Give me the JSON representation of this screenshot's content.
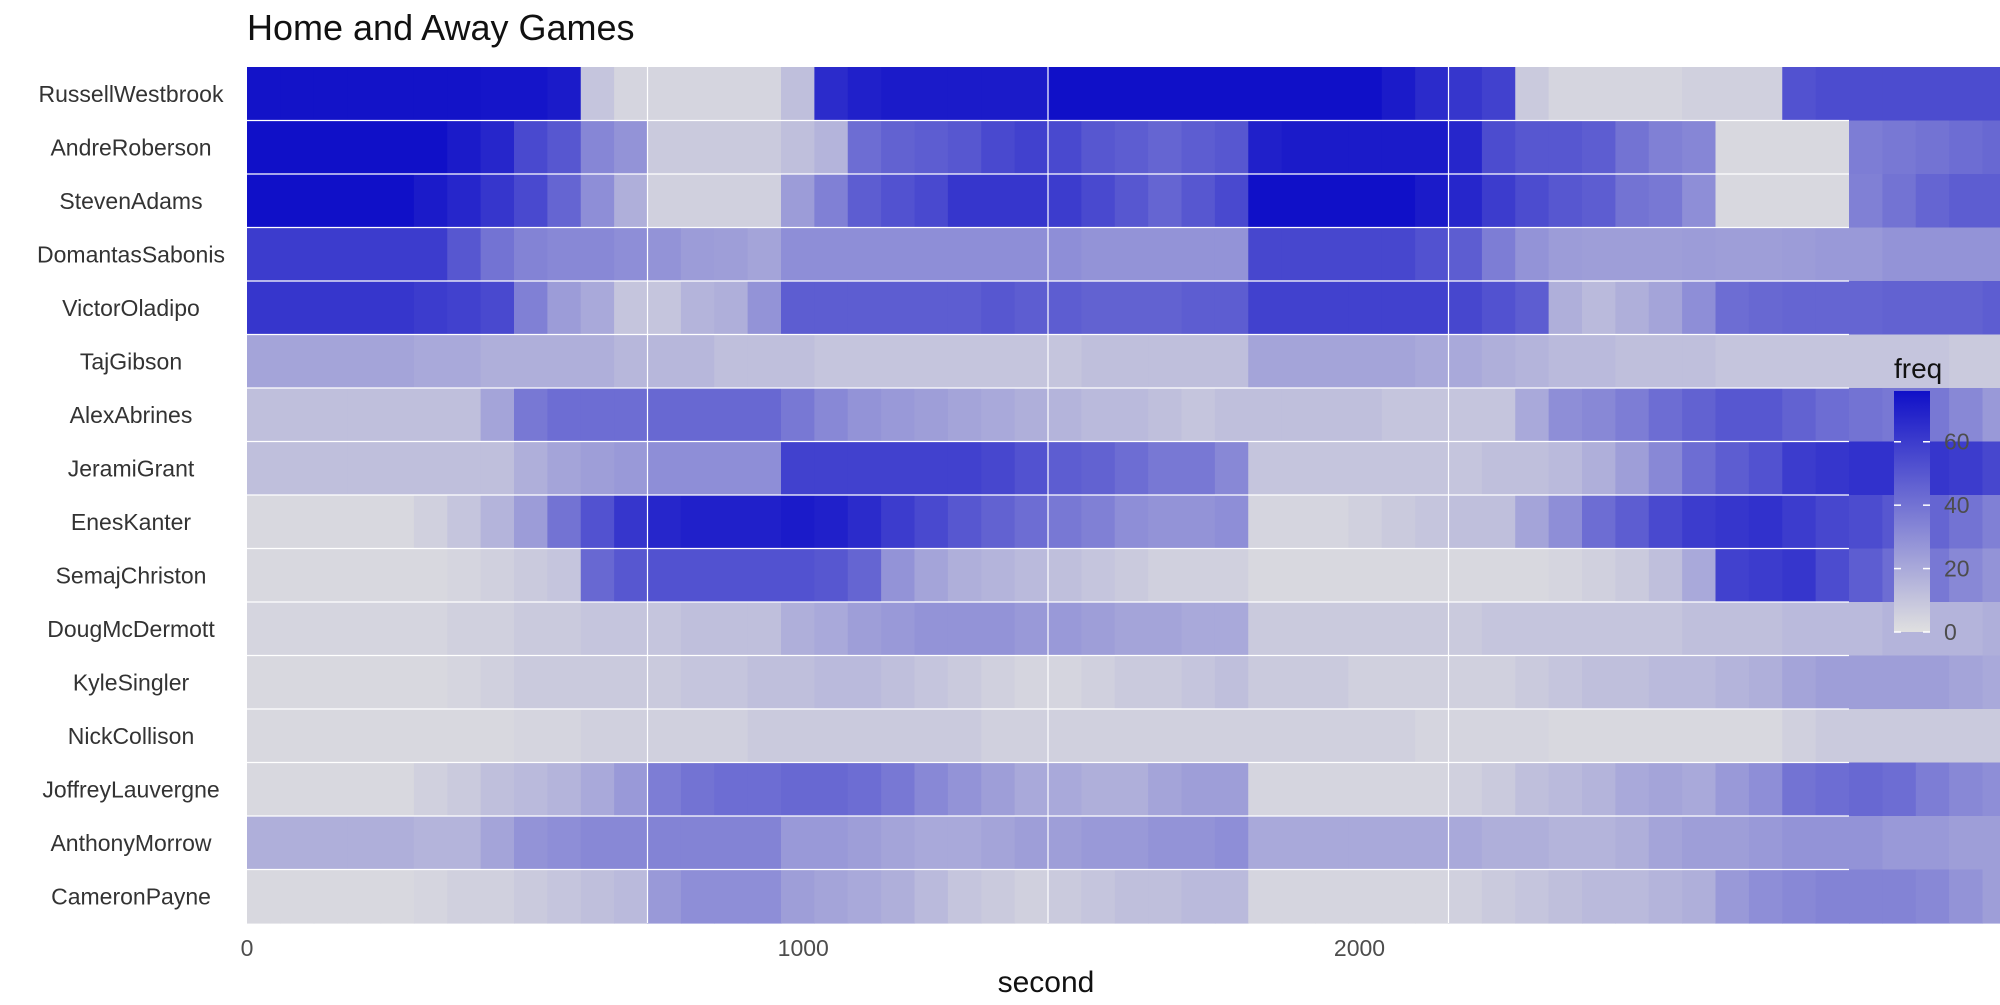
{
  "chart_data": {
    "type": "heatmap",
    "title": "Home and Away Games",
    "xlabel": "second",
    "ylabel": "",
    "xlim": [
      0,
      2880
    ],
    "x_ticks": [
      0,
      1000,
      2000
    ],
    "x_tick_labels": [
      "0",
      "1000",
      "2000"
    ],
    "period_boundaries": [
      720,
      1440,
      2160
    ],
    "bin_width": 60,
    "rows": [
      "RussellWestbrook",
      "AndreRoberson",
      "StevenAdams",
      "DomantasSabonis",
      "VictorOladipo",
      "TajGibson",
      "AlexAbrines",
      "JeramiGrant",
      "EnesKanter",
      "SemajChriston",
      "DougMcDermott",
      "KyleSingler",
      "NickCollison",
      "JoffreyLauvergne",
      "AnthonyMorrow",
      "CameronPayne"
    ],
    "color_scale": {
      "low": "#e0e0e0",
      "high": "#1010c8",
      "domain": [
        0,
        76
      ]
    },
    "legend": {
      "title": "freq",
      "ticks": [
        0,
        20,
        40,
        60
      ],
      "position": "right"
    },
    "grid": true,
    "values": [
      [
        75,
        75,
        75,
        75,
        75,
        75,
        75,
        74,
        74,
        72,
        10,
        4,
        4,
        4,
        4,
        4,
        12,
        66,
        70,
        72,
        72,
        72,
        72,
        72,
        76,
        76,
        76,
        76,
        76,
        76,
        76,
        76,
        76,
        76,
        72,
        66,
        62,
        58,
        8,
        4,
        4,
        4,
        4,
        6,
        6,
        6,
        52,
        54,
        54,
        54,
        54,
        54,
        54,
        54,
        54,
        54,
        54,
        44,
        40,
        40
      ],
      [
        76,
        76,
        76,
        76,
        76,
        76,
        72,
        68,
        55,
        50,
        33,
        28,
        8,
        8,
        8,
        8,
        12,
        16,
        42,
        46,
        48,
        50,
        55,
        58,
        55,
        50,
        48,
        45,
        48,
        50,
        70,
        72,
        72,
        72,
        72,
        72,
        68,
        54,
        50,
        50,
        48,
        40,
        35,
        33,
        3,
        3,
        3,
        3,
        36,
        38,
        40,
        42,
        44,
        45,
        45,
        45,
        45,
        42,
        40,
        40
      ],
      [
        76,
        76,
        76,
        76,
        76,
        72,
        68,
        62,
        55,
        45,
        30,
        18,
        6,
        6,
        6,
        6,
        25,
        35,
        48,
        52,
        55,
        62,
        62,
        62,
        60,
        55,
        50,
        45,
        50,
        55,
        76,
        76,
        76,
        76,
        76,
        72,
        68,
        60,
        54,
        50,
        48,
        40,
        38,
        30,
        3,
        3,
        3,
        3,
        35,
        40,
        45,
        48,
        48,
        48,
        48,
        48,
        48,
        48,
        48,
        48
      ],
      [
        60,
        60,
        60,
        60,
        60,
        60,
        50,
        40,
        34,
        32,
        32,
        30,
        28,
        25,
        24,
        22,
        30,
        30,
        30,
        30,
        30,
        30,
        30,
        30,
        30,
        28,
        28,
        28,
        28,
        28,
        56,
        56,
        56,
        56,
        56,
        52,
        48,
        36,
        28,
        25,
        24,
        24,
        24,
        25,
        24,
        24,
        25,
        26,
        26,
        28,
        28,
        28,
        28,
        28,
        28,
        28,
        28,
        28,
        28,
        28
      ],
      [
        62,
        62,
        62,
        62,
        62,
        60,
        58,
        55,
        35,
        25,
        20,
        10,
        10,
        16,
        18,
        28,
        48,
        48,
        48,
        48,
        48,
        48,
        50,
        48,
        48,
        46,
        46,
        46,
        48,
        48,
        58,
        58,
        58,
        58,
        58,
        58,
        56,
        52,
        48,
        18,
        14,
        18,
        22,
        30,
        42,
        44,
        45,
        45,
        45,
        46,
        46,
        46,
        48,
        48,
        48,
        48,
        50,
        48,
        48,
        48
      ],
      [
        22,
        22,
        22,
        22,
        22,
        20,
        20,
        18,
        18,
        18,
        18,
        15,
        15,
        15,
        12,
        12,
        12,
        10,
        10,
        10,
        10,
        10,
        10,
        10,
        10,
        12,
        12,
        12,
        12,
        12,
        22,
        22,
        22,
        22,
        22,
        20,
        20,
        18,
        16,
        14,
        14,
        12,
        12,
        12,
        10,
        10,
        10,
        10,
        10,
        10,
        10,
        8,
        8,
        8,
        8,
        8,
        10,
        10,
        12,
        12
      ],
      [
        12,
        12,
        12,
        12,
        12,
        12,
        12,
        22,
        38,
        42,
        42,
        42,
        44,
        44,
        44,
        44,
        38,
        32,
        28,
        26,
        24,
        22,
        20,
        18,
        16,
        14,
        14,
        12,
        10,
        12,
        12,
        12,
        12,
        12,
        10,
        10,
        10,
        10,
        20,
        30,
        32,
        36,
        42,
        46,
        50,
        50,
        46,
        42,
        40,
        38,
        38,
        32,
        26,
        24,
        22,
        20,
        20,
        18,
        35,
        58
      ],
      [
        12,
        12,
        12,
        12,
        12,
        12,
        12,
        12,
        18,
        22,
        24,
        26,
        30,
        30,
        30,
        30,
        58,
        58,
        58,
        58,
        58,
        58,
        56,
        52,
        48,
        46,
        42,
        38,
        38,
        32,
        10,
        10,
        10,
        10,
        10,
        10,
        10,
        12,
        12,
        14,
        18,
        24,
        32,
        42,
        48,
        52,
        60,
        62,
        64,
        64,
        62,
        60,
        56,
        52,
        48,
        46,
        44,
        45,
        50,
        58
      ],
      [
        3,
        3,
        3,
        3,
        3,
        6,
        10,
        16,
        25,
        40,
        52,
        62,
        68,
        70,
        70,
        70,
        72,
        70,
        66,
        60,
        55,
        50,
        46,
        42,
        38,
        35,
        30,
        28,
        28,
        30,
        4,
        4,
        4,
        6,
        8,
        10,
        12,
        12,
        22,
        30,
        42,
        48,
        55,
        60,
        62,
        64,
        60,
        56,
        54,
        50,
        45,
        40,
        35,
        30,
        28,
        26,
        25,
        25,
        18,
        10
      ],
      [
        3,
        3,
        3,
        3,
        3,
        3,
        4,
        6,
        8,
        10,
        44,
        50,
        52,
        52,
        52,
        52,
        52,
        50,
        45,
        28,
        22,
        18,
        16,
        14,
        12,
        10,
        8,
        6,
        6,
        6,
        3,
        3,
        3,
        3,
        3,
        3,
        3,
        3,
        3,
        4,
        6,
        8,
        12,
        20,
        58,
        60,
        62,
        54,
        48,
        42,
        38,
        32,
        28,
        24,
        22,
        20,
        20,
        20,
        26,
        40
      ],
      [
        4,
        4,
        4,
        4,
        4,
        4,
        6,
        6,
        8,
        8,
        10,
        10,
        10,
        12,
        12,
        12,
        18,
        20,
        24,
        26,
        28,
        28,
        28,
        26,
        26,
        24,
        22,
        22,
        20,
        20,
        8,
        8,
        8,
        8,
        8,
        8,
        8,
        10,
        10,
        10,
        10,
        10,
        10,
        12,
        12,
        12,
        14,
        14,
        14,
        16,
        16,
        16,
        18,
        18,
        18,
        18,
        18,
        18,
        18,
        18
      ],
      [
        3,
        3,
        3,
        3,
        3,
        3,
        4,
        6,
        8,
        8,
        8,
        8,
        8,
        10,
        10,
        12,
        12,
        14,
        14,
        12,
        10,
        8,
        6,
        4,
        4,
        6,
        8,
        8,
        10,
        12,
        8,
        8,
        8,
        6,
        6,
        6,
        6,
        6,
        8,
        10,
        12,
        12,
        14,
        14,
        16,
        18,
        22,
        24,
        24,
        24,
        24,
        22,
        20,
        20,
        22,
        24,
        26,
        28,
        30,
        30
      ],
      [
        3,
        3,
        3,
        3,
        3,
        3,
        3,
        3,
        4,
        4,
        6,
        6,
        6,
        6,
        6,
        8,
        8,
        8,
        8,
        8,
        8,
        8,
        6,
        6,
        6,
        6,
        6,
        6,
        6,
        6,
        6,
        6,
        6,
        6,
        6,
        4,
        4,
        4,
        4,
        3,
        3,
        3,
        3,
        3,
        3,
        3,
        6,
        8,
        8,
        8,
        8,
        8,
        8,
        6,
        6,
        4,
        4,
        4,
        4,
        4
      ],
      [
        3,
        3,
        3,
        3,
        3,
        6,
        8,
        12,
        14,
        16,
        20,
        26,
        36,
        40,
        42,
        42,
        44,
        44,
        42,
        38,
        32,
        28,
        24,
        20,
        20,
        18,
        18,
        22,
        24,
        24,
        4,
        4,
        4,
        4,
        4,
        4,
        6,
        8,
        12,
        14,
        16,
        20,
        22,
        20,
        26,
        30,
        40,
        42,
        44,
        42,
        36,
        32,
        30,
        28,
        26,
        24,
        22,
        22,
        26,
        30
      ],
      [
        18,
        18,
        18,
        18,
        18,
        16,
        16,
        22,
        28,
        30,
        32,
        32,
        34,
        34,
        34,
        34,
        26,
        26,
        24,
        22,
        20,
        20,
        22,
        24,
        24,
        26,
        26,
        28,
        28,
        30,
        20,
        20,
        20,
        20,
        20,
        20,
        20,
        18,
        18,
        16,
        16,
        18,
        22,
        24,
        24,
        26,
        28,
        28,
        28,
        26,
        26,
        24,
        24,
        28,
        30,
        26,
        24,
        22,
        24,
        26
      ],
      [
        3,
        3,
        3,
        3,
        3,
        4,
        6,
        6,
        8,
        10,
        12,
        14,
        26,
        30,
        30,
        30,
        24,
        22,
        20,
        18,
        14,
        10,
        8,
        6,
        8,
        10,
        12,
        12,
        14,
        14,
        4,
        4,
        4,
        4,
        4,
        4,
        6,
        8,
        10,
        12,
        14,
        14,
        16,
        18,
        26,
        30,
        32,
        34,
        34,
        34,
        32,
        28,
        24,
        20,
        18,
        16,
        16,
        14,
        14,
        14
      ]
    ]
  }
}
